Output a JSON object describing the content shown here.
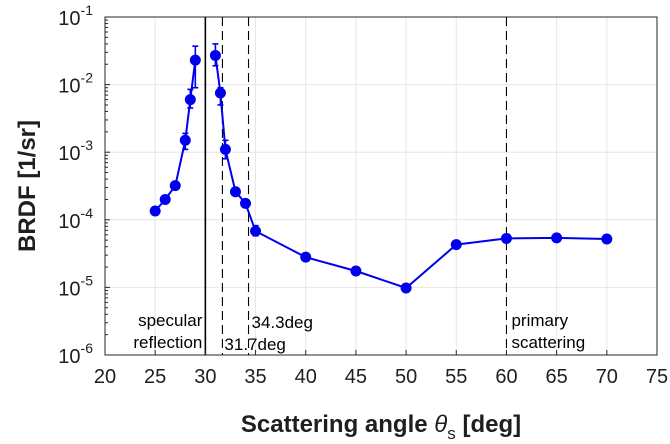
{
  "chart_data": {
    "type": "line",
    "title": "",
    "xlabel": "Scattering angle",
    "xlabel_symbol": "θ",
    "xlabel_subscript": "s",
    "xlabel_unit": "[deg]",
    "ylabel": "BRDF [1/sr]",
    "xlim": [
      20,
      75
    ],
    "ylim": [
      1e-06,
      0.1
    ],
    "yscale": "log",
    "grid": true,
    "x_ticks": [
      "20",
      "25",
      "30",
      "35",
      "40",
      "45",
      "50",
      "55",
      "60",
      "65",
      "70",
      "75"
    ],
    "y_ticks": [
      {
        "base": "10",
        "exp": "-6"
      },
      {
        "base": "10",
        "exp": "-5"
      },
      {
        "base": "10",
        "exp": "-4"
      },
      {
        "base": "10",
        "exp": "-3"
      },
      {
        "base": "10",
        "exp": "-2"
      },
      {
        "base": "10",
        "exp": "-1"
      }
    ],
    "series": [
      {
        "color": "#0000ee",
        "segments": [
          {
            "x": [
              25,
              26,
              27,
              28,
              28.5,
              29
            ],
            "y": [
              0.000135,
              0.0002,
              0.00032,
              0.0015,
              0.006,
              0.023
            ],
            "err_low": [
              null,
              null,
              null,
              0.0011,
              0.0045,
              0.009
            ],
            "err_high": [
              null,
              null,
              null,
              0.0019,
              0.0085,
              0.037
            ]
          },
          {
            "x": [
              31,
              31.5,
              32,
              33,
              34,
              35,
              40,
              45,
              50,
              55,
              60,
              65,
              70
            ],
            "y": [
              0.027,
              0.0075,
              0.0011,
              0.00026,
              0.000175,
              6.8e-05,
              2.8e-05,
              1.75e-05,
              9.8e-06,
              4.3e-05,
              5.3e-05,
              5.4e-05,
              5.2e-05
            ],
            "err_low": [
              0.019,
              0.005,
              0.0008,
              null,
              null,
              5.8e-05,
              null,
              null,
              null,
              null,
              null,
              null,
              null
            ],
            "err_high": [
              0.04,
              0.009,
              0.0015,
              null,
              null,
              8.2e-05,
              null,
              null,
              null,
              null,
              null,
              null,
              null
            ]
          }
        ]
      }
    ],
    "reference_lines": [
      {
        "x": 30,
        "style": "solid"
      },
      {
        "x": 31.7,
        "style": "dashed"
      },
      {
        "x": 34.3,
        "style": "dashed"
      },
      {
        "x": 60,
        "style": "dashed"
      }
    ],
    "annotations": [
      {
        "lines": [
          "specular",
          "reflection"
        ],
        "x": 30,
        "align": "right"
      },
      {
        "lines": [
          "31.7deg"
        ],
        "x": 31.7,
        "align": "left-low"
      },
      {
        "lines": [
          "34.3deg"
        ],
        "x": 34.3,
        "align": "left-high"
      },
      {
        "lines": [
          "primary",
          "scattering"
        ],
        "x": 60,
        "align": "left"
      }
    ]
  }
}
